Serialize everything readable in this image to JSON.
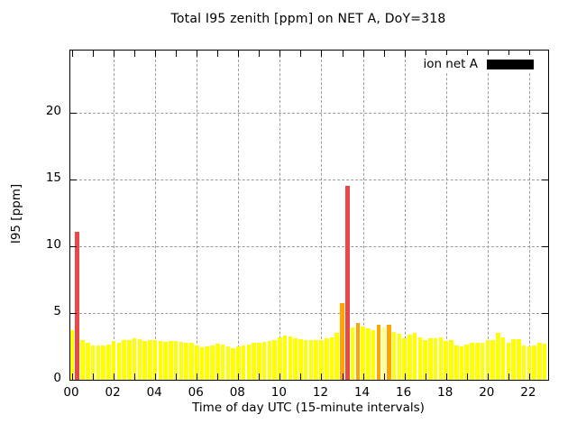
{
  "title": "Total I95 zenith [ppm] on NET A, DoY=318",
  "x_axis": {
    "label": "Time of day UTC (15-minute intervals)",
    "tick_labels": [
      "00",
      "02",
      "04",
      "06",
      "08",
      "10",
      "12",
      "14",
      "16",
      "18",
      "20",
      "22"
    ],
    "minor_tick_every_hours": 1
  },
  "y_axis": {
    "label": "I95 [ppm]",
    "tick_labels": [
      "0",
      "5",
      "10",
      "15",
      "20"
    ],
    "tick_values": [
      0,
      5,
      10,
      15,
      20
    ]
  },
  "legend": {
    "label": "ion net A",
    "swatch_color": "#000000",
    "position": "top-right"
  },
  "colors": {
    "yellow": "#ffff00",
    "orange": "#ffa500",
    "red": "#e84848",
    "pale": "#ffff99",
    "grid": "#9b9b9b",
    "border": "#000000",
    "background": "#ffffff"
  },
  "chart_data": {
    "type": "bar",
    "title": "Total I95 zenith [ppm] on NET A, DoY=318",
    "xlabel": "Time of day UTC (15-minute intervals)",
    "ylabel": "I95 [ppm]",
    "series_name": "ion net A",
    "interval_minutes": 15,
    "xlim_hours": [
      0,
      23
    ],
    "ylim": [
      0,
      24.7
    ],
    "grid": "dashed",
    "color_key": {
      "y": "yellow",
      "o": "orange",
      "r": "red",
      "p": "pale"
    },
    "points": [
      [
        "00:00",
        3.7,
        "y"
      ],
      [
        "00:15",
        11.1,
        "r"
      ],
      [
        "00:30",
        3.0,
        "y"
      ],
      [
        "00:45",
        2.75,
        "y"
      ],
      [
        "01:00",
        2.6,
        "y"
      ],
      [
        "01:15",
        2.6,
        "y"
      ],
      [
        "01:30",
        2.6,
        "y"
      ],
      [
        "01:45",
        2.65,
        "y"
      ],
      [
        "02:00",
        2.9,
        "y"
      ],
      [
        "02:15",
        2.75,
        "y"
      ],
      [
        "02:30",
        2.95,
        "y"
      ],
      [
        "02:45",
        3.0,
        "y"
      ],
      [
        "03:00",
        3.1,
        "y"
      ],
      [
        "03:15",
        3.05,
        "y"
      ],
      [
        "03:30",
        2.9,
        "y"
      ],
      [
        "03:45",
        2.95,
        "y"
      ],
      [
        "04:00",
        2.95,
        "y"
      ],
      [
        "04:15",
        2.9,
        "y"
      ],
      [
        "04:30",
        2.85,
        "y"
      ],
      [
        "04:45",
        2.9,
        "y"
      ],
      [
        "05:00",
        2.9,
        "y"
      ],
      [
        "05:15",
        2.85,
        "y"
      ],
      [
        "05:30",
        2.8,
        "y"
      ],
      [
        "05:45",
        2.75,
        "y"
      ],
      [
        "06:00",
        2.55,
        "y"
      ],
      [
        "06:15",
        2.4,
        "y"
      ],
      [
        "06:30",
        2.5,
        "y"
      ],
      [
        "06:45",
        2.55,
        "y"
      ],
      [
        "07:00",
        2.7,
        "y"
      ],
      [
        "07:15",
        2.65,
        "y"
      ],
      [
        "07:30",
        2.5,
        "y"
      ],
      [
        "07:45",
        2.35,
        "y"
      ],
      [
        "08:00",
        2.5,
        "y"
      ],
      [
        "08:15",
        2.6,
        "y"
      ],
      [
        "08:30",
        2.65,
        "y"
      ],
      [
        "08:45",
        2.75,
        "y"
      ],
      [
        "09:00",
        2.8,
        "y"
      ],
      [
        "09:15",
        2.85,
        "y"
      ],
      [
        "09:30",
        2.9,
        "y"
      ],
      [
        "09:45",
        3.0,
        "y"
      ],
      [
        "10:00",
        3.2,
        "y"
      ],
      [
        "10:15",
        3.3,
        "y"
      ],
      [
        "10:30",
        3.25,
        "y"
      ],
      [
        "10:45",
        3.1,
        "y"
      ],
      [
        "11:00",
        3.05,
        "y"
      ],
      [
        "11:15",
        3.0,
        "y"
      ],
      [
        "11:30",
        3.0,
        "y"
      ],
      [
        "11:45",
        2.95,
        "y"
      ],
      [
        "12:00",
        3.0,
        "y"
      ],
      [
        "12:15",
        3.1,
        "y"
      ],
      [
        "12:30",
        3.2,
        "y"
      ],
      [
        "12:45",
        3.5,
        "y"
      ],
      [
        "13:00",
        5.75,
        "o"
      ],
      [
        "13:15",
        14.5,
        "r"
      ],
      [
        "13:30",
        3.9,
        "y"
      ],
      [
        "13:45",
        4.25,
        "o"
      ],
      [
        "14:00",
        4.0,
        "y"
      ],
      [
        "14:15",
        3.85,
        "y"
      ],
      [
        "14:30",
        3.7,
        "y"
      ],
      [
        "14:45",
        4.1,
        "o"
      ],
      [
        "15:00",
        3.95,
        "p"
      ],
      [
        "15:15",
        4.1,
        "o"
      ],
      [
        "15:30",
        3.6,
        "y"
      ],
      [
        "15:45",
        3.45,
        "y"
      ],
      [
        "16:00",
        3.1,
        "y"
      ],
      [
        "16:15",
        3.35,
        "y"
      ],
      [
        "16:30",
        3.5,
        "y"
      ],
      [
        "16:45",
        3.2,
        "y"
      ],
      [
        "17:00",
        3.0,
        "y"
      ],
      [
        "17:15",
        3.1,
        "y"
      ],
      [
        "17:30",
        3.1,
        "y"
      ],
      [
        "17:45",
        3.15,
        "y"
      ],
      [
        "18:00",
        2.9,
        "y"
      ],
      [
        "18:15",
        3.0,
        "y"
      ],
      [
        "18:30",
        2.55,
        "y"
      ],
      [
        "18:45",
        2.5,
        "y"
      ],
      [
        "19:00",
        2.65,
        "y"
      ],
      [
        "19:15",
        2.8,
        "y"
      ],
      [
        "19:30",
        2.75,
        "y"
      ],
      [
        "19:45",
        2.8,
        "y"
      ],
      [
        "20:00",
        2.95,
        "y"
      ],
      [
        "20:15",
        3.0,
        "y"
      ],
      [
        "20:30",
        3.5,
        "y"
      ],
      [
        "20:45",
        3.15,
        "y"
      ],
      [
        "21:00",
        2.8,
        "y"
      ],
      [
        "21:15",
        3.05,
        "y"
      ],
      [
        "21:30",
        3.05,
        "y"
      ],
      [
        "21:45",
        2.6,
        "y"
      ],
      [
        "22:00",
        2.5,
        "y"
      ],
      [
        "22:15",
        2.6,
        "y"
      ],
      [
        "22:30",
        2.75,
        "y"
      ],
      [
        "22:45",
        2.7,
        "y"
      ]
    ]
  }
}
